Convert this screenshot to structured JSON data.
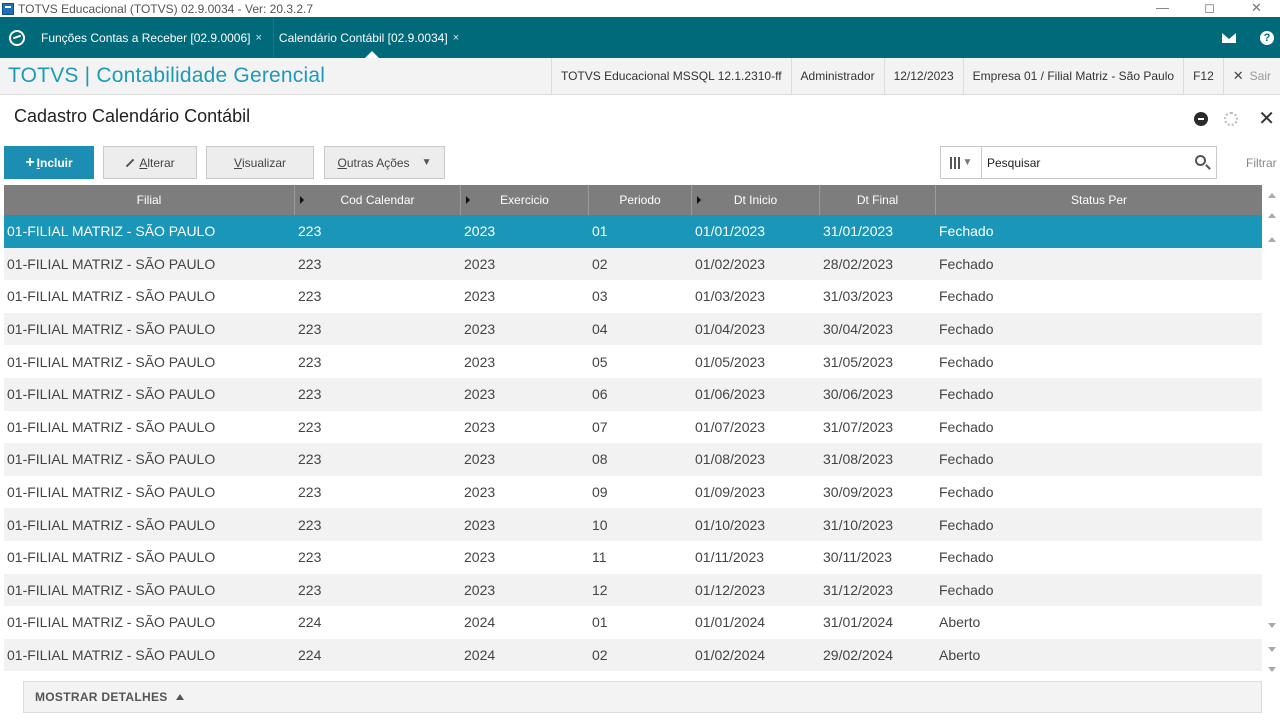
{
  "window": {
    "title": "TOTVS Educacional (TOTVS) 02.9.0034 - Ver: 20.3.2.7",
    "controls": [
      "—",
      "◻",
      "✕"
    ]
  },
  "tabs": [
    {
      "label": "Funções Contas a Receber [02.9.0006]",
      "close": "×",
      "active": false
    },
    {
      "label": "Calendário Contábil [02.9.0034]",
      "close": "×",
      "active": true
    }
  ],
  "tabbar_icons": {
    "help": "?"
  },
  "header": {
    "app_title": "TOTVS | Contabilidade Gerencial",
    "environment": "TOTVS Educacional MSSQL 12.1.2310-ff",
    "user": "Administrador",
    "date": "12/12/2023",
    "company": "Empresa 01 / Filial Matriz - São Paulo",
    "f12": "F12",
    "exit_icon": "✕",
    "exit": "Sair"
  },
  "page": {
    "title": "Cadastro Calendário Contábil",
    "close_icon": "✕"
  },
  "toolbar": {
    "incluir_plus": "+",
    "incluir_first": "I",
    "incluir_rest": "ncluir",
    "alterar_first": "A",
    "alterar_rest": "lterar",
    "visualizar_first": "V",
    "visualizar_rest": "isualizar",
    "outras_first": "O",
    "outras_rest": "utras Ações",
    "outras_caret": "▼",
    "col_caret": "▼",
    "search_placeholder": "Pesquisar",
    "filter": "Filtrar"
  },
  "grid": {
    "headers": [
      "Filial",
      "Cod Calendar",
      "Exercicio",
      "Periodo",
      "Dt Inicio",
      "Dt Final",
      "Status Per"
    ],
    "rows": [
      {
        "filial": "01-FILIAL MATRIZ - SÃO PAULO",
        "cod": "223",
        "exercicio": "2023",
        "periodo": "01",
        "dt_inicio": "01/01/2023",
        "dt_final": "31/01/2023",
        "status": "Fechado",
        "selected": true
      },
      {
        "filial": "01-FILIAL MATRIZ - SÃO PAULO",
        "cod": "223",
        "exercicio": "2023",
        "periodo": "02",
        "dt_inicio": "01/02/2023",
        "dt_final": "28/02/2023",
        "status": "Fechado"
      },
      {
        "filial": "01-FILIAL MATRIZ - SÃO PAULO",
        "cod": "223",
        "exercicio": "2023",
        "periodo": "03",
        "dt_inicio": "01/03/2023",
        "dt_final": "31/03/2023",
        "status": "Fechado"
      },
      {
        "filial": "01-FILIAL MATRIZ - SÃO PAULO",
        "cod": "223",
        "exercicio": "2023",
        "periodo": "04",
        "dt_inicio": "01/04/2023",
        "dt_final": "30/04/2023",
        "status": "Fechado"
      },
      {
        "filial": "01-FILIAL MATRIZ - SÃO PAULO",
        "cod": "223",
        "exercicio": "2023",
        "periodo": "05",
        "dt_inicio": "01/05/2023",
        "dt_final": "31/05/2023",
        "status": "Fechado"
      },
      {
        "filial": "01-FILIAL MATRIZ - SÃO PAULO",
        "cod": "223",
        "exercicio": "2023",
        "periodo": "06",
        "dt_inicio": "01/06/2023",
        "dt_final": "30/06/2023",
        "status": "Fechado"
      },
      {
        "filial": "01-FILIAL MATRIZ - SÃO PAULO",
        "cod": "223",
        "exercicio": "2023",
        "periodo": "07",
        "dt_inicio": "01/07/2023",
        "dt_final": "31/07/2023",
        "status": "Fechado"
      },
      {
        "filial": "01-FILIAL MATRIZ - SÃO PAULO",
        "cod": "223",
        "exercicio": "2023",
        "periodo": "08",
        "dt_inicio": "01/08/2023",
        "dt_final": "31/08/2023",
        "status": "Fechado"
      },
      {
        "filial": "01-FILIAL MATRIZ - SÃO PAULO",
        "cod": "223",
        "exercicio": "2023",
        "periodo": "09",
        "dt_inicio": "01/09/2023",
        "dt_final": "30/09/2023",
        "status": "Fechado"
      },
      {
        "filial": "01-FILIAL MATRIZ - SÃO PAULO",
        "cod": "223",
        "exercicio": "2023",
        "periodo": "10",
        "dt_inicio": "01/10/2023",
        "dt_final": "31/10/2023",
        "status": "Fechado"
      },
      {
        "filial": "01-FILIAL MATRIZ - SÃO PAULO",
        "cod": "223",
        "exercicio": "2023",
        "periodo": "11",
        "dt_inicio": "01/11/2023",
        "dt_final": "30/11/2023",
        "status": "Fechado"
      },
      {
        "filial": "01-FILIAL MATRIZ - SÃO PAULO",
        "cod": "223",
        "exercicio": "2023",
        "periodo": "12",
        "dt_inicio": "01/12/2023",
        "dt_final": "31/12/2023",
        "status": "Fechado"
      },
      {
        "filial": "01-FILIAL MATRIZ - SÃO PAULO",
        "cod": "224",
        "exercicio": "2024",
        "periodo": "01",
        "dt_inicio": "01/01/2024",
        "dt_final": "31/01/2024",
        "status": "Aberto"
      },
      {
        "filial": "01-FILIAL MATRIZ - SÃO PAULO",
        "cod": "224",
        "exercicio": "2024",
        "periodo": "02",
        "dt_inicio": "01/02/2024",
        "dt_final": "29/02/2024",
        "status": "Aberto"
      }
    ]
  },
  "footer": {
    "details": "MOSTRAR DETALHES"
  },
  "colors": {
    "accent": "#1e9ab9",
    "tabbar": "#00697a",
    "selected_row": "#1a96b8",
    "grid_header": "#7d7d7d"
  }
}
